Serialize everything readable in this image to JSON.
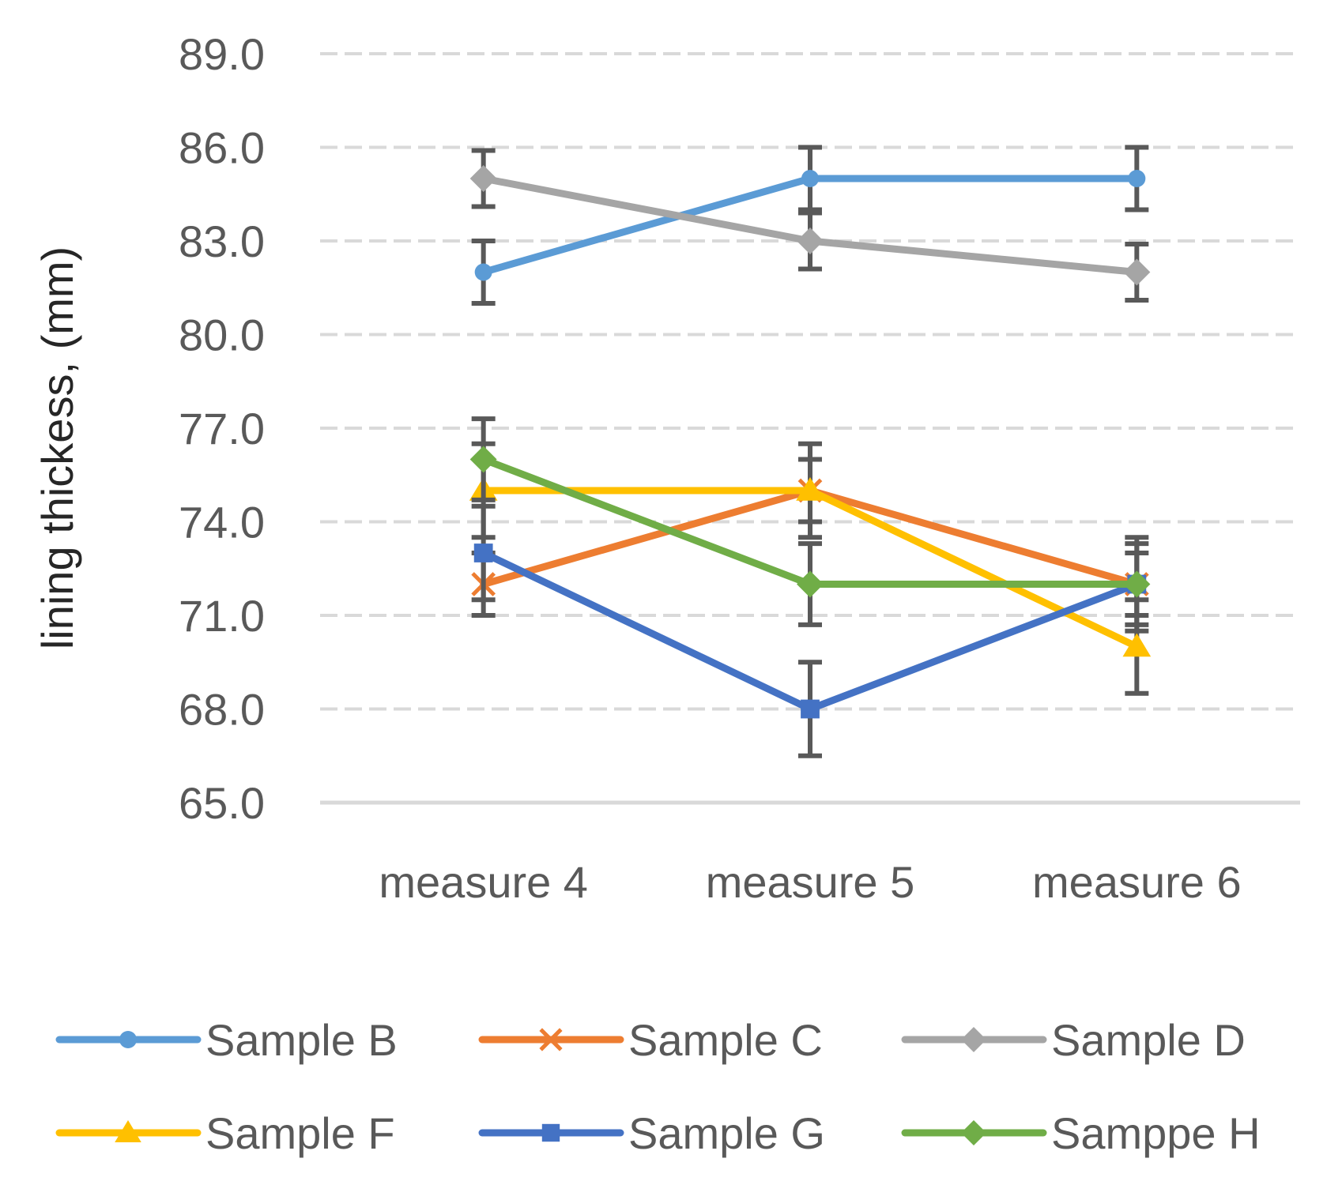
{
  "chart_data": {
    "type": "line",
    "title": "",
    "xlabel": "",
    "ylabel": "lining  thickess, (mm)",
    "categories": [
      "measure 4",
      "measure 5",
      "measure 6"
    ],
    "ylim": [
      65.0,
      89.0
    ],
    "yticks": [
      65.0,
      68.0,
      71.0,
      74.0,
      77.0,
      80.0,
      83.0,
      86.0,
      89.0
    ],
    "grid": "horizontal-dashed",
    "legend": "bottom",
    "series": [
      {
        "name": "Sample B",
        "color": "#5B9BD5",
        "marker": "circle",
        "values": [
          82.0,
          85.0,
          85.0
        ],
        "errors": [
          1.0,
          1.0,
          1.0
        ]
      },
      {
        "name": "Sample C",
        "color": "#ED7D31",
        "marker": "x",
        "values": [
          72.0,
          75.0,
          72.0
        ],
        "errors": [
          1.0,
          1.0,
          1.0
        ]
      },
      {
        "name": "Sample D",
        "color": "#A5A5A5",
        "marker": "diamond",
        "values": [
          85.0,
          83.0,
          82.0
        ],
        "errors": [
          0.9,
          0.9,
          0.9
        ]
      },
      {
        "name": "Sample F",
        "color": "#FFC000",
        "marker": "triangle",
        "values": [
          75.0,
          75.0,
          70.0
        ],
        "errors": [
          1.5,
          1.5,
          1.5
        ]
      },
      {
        "name": "Sample G",
        "color": "#4472C4",
        "marker": "square",
        "values": [
          73.0,
          68.0,
          72.0
        ],
        "errors": [
          1.5,
          1.5,
          1.5
        ]
      },
      {
        "name": "Samppe H",
        "color": "#70AD47",
        "marker": "diamond",
        "values": [
          76.0,
          72.0,
          72.0
        ],
        "errors": [
          1.3,
          1.3,
          1.3
        ]
      }
    ]
  }
}
